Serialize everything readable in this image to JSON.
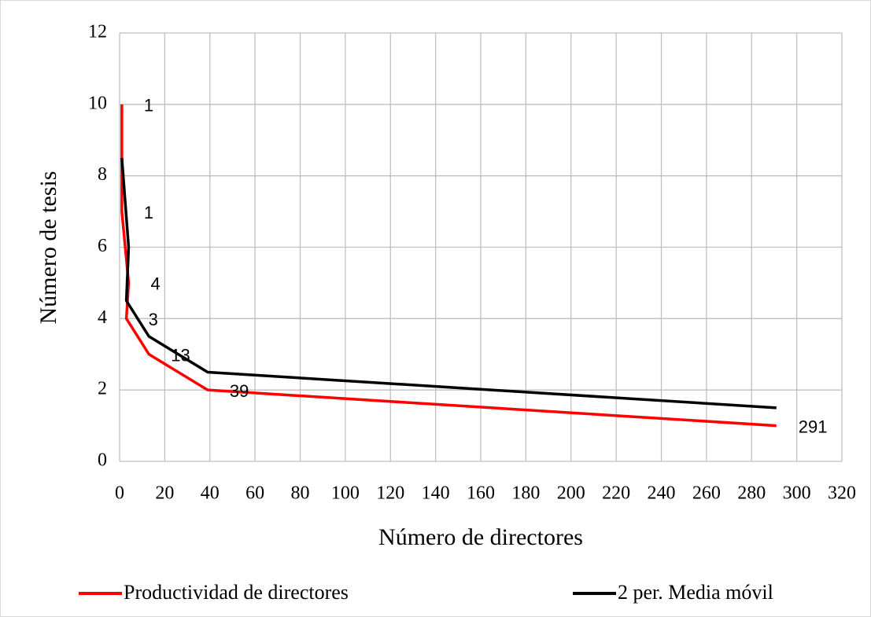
{
  "chart_data": {
    "type": "line",
    "y_label": "Número de tesis",
    "x_label": "Número de directores",
    "xlim": [
      0,
      320
    ],
    "xticks": [
      0,
      20,
      40,
      60,
      80,
      100,
      120,
      140,
      160,
      180,
      200,
      220,
      240,
      260,
      280,
      300,
      320
    ],
    "ylim": [
      0,
      12
    ],
    "yticks": [
      0,
      2,
      4,
      6,
      8,
      10,
      12
    ],
    "grid": true,
    "legend": "bottom",
    "series": [
      {
        "name": "Productividad de directores",
        "color": "#ff0000",
        "x": [
          1,
          1,
          4,
          3,
          13,
          39,
          291
        ],
        "values": [
          10,
          7,
          5,
          4,
          3,
          2,
          1
        ]
      },
      {
        "name": "2 per. Media móvil",
        "color": "#000000",
        "x": [
          1,
          4,
          3,
          13,
          39,
          291
        ],
        "values": [
          8.5,
          6,
          4.5,
          3.5,
          2.5,
          1.5
        ]
      }
    ]
  }
}
